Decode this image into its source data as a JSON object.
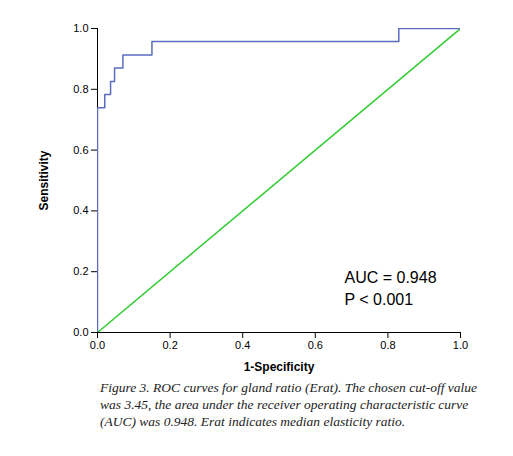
{
  "chart_data": {
    "type": "line",
    "xlabel": "1-Specificity",
    "ylabel": "Sensitivity",
    "caption": "Figure 3. ROC curves for gland ratio (Erat). The chosen cut-off value was 3.45, the area under the receiver operating characteristic curve (AUC) was 0.948. Erat indicates median elasticity ratio.",
    "annotations": [
      "AUC = 0.948",
      "P < 0.001"
    ],
    "series": [
      {
        "color": "#5b6cc0",
        "x": [
          0,
          0,
          0.02,
          0.02,
          0.036,
          0.036,
          0.047,
          0.047,
          0.07,
          0.07,
          0.15,
          0.15,
          0.83,
          0.83,
          1.0
        ],
        "values": [
          0,
          0.739,
          0.739,
          0.783,
          0.783,
          0.826,
          0.826,
          0.87,
          0.87,
          0.913,
          0.913,
          0.957,
          0.957,
          1.0,
          1.0
        ]
      },
      {
        "color": "#33cc33",
        "x": [
          0,
          1.0
        ],
        "values": [
          0,
          1.0
        ]
      }
    ],
    "xlim": [
      0,
      1.0
    ],
    "ylim": [
      0,
      1.0
    ],
    "xticks": [
      {
        "value": 0,
        "label": "0.0"
      },
      {
        "value": 0.2,
        "label": "0.2"
      },
      {
        "value": 0.4,
        "label": "0.4"
      },
      {
        "value": 0.6,
        "label": "0.6"
      },
      {
        "value": 0.8,
        "label": "0.8"
      },
      {
        "value": 1.0,
        "label": "1.0"
      }
    ],
    "yticks": [
      {
        "value": 0,
        "label": "0.0"
      },
      {
        "value": 0.2,
        "label": "0.2"
      },
      {
        "value": 0.4,
        "label": "0.4"
      },
      {
        "value": 0.6,
        "label": "0.6"
      },
      {
        "value": 0.8,
        "label": "0.8"
      },
      {
        "value": 1.0,
        "label": "1.0"
      }
    ],
    "grid": false
  }
}
